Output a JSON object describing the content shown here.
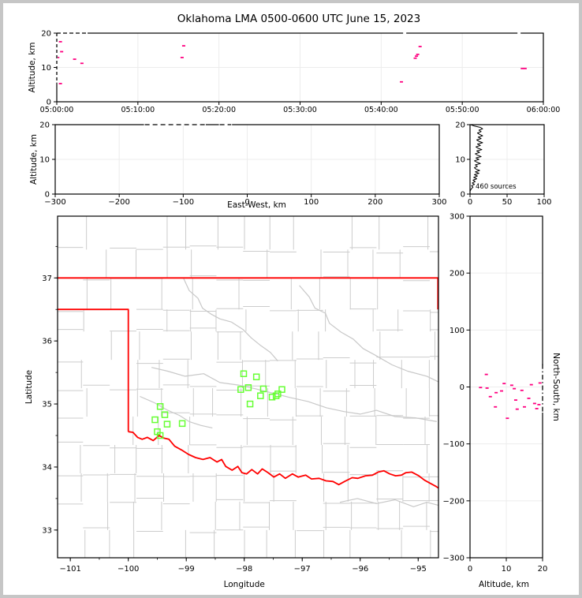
{
  "title": "Oklahoma LMA 0500-0600 UTC June 15, 2023",
  "colors": {
    "source_point": "#ff0080",
    "station": "#66ff33",
    "state_border": "#ff0000",
    "county_line": "#cccccc",
    "gridline": "#ececec",
    "frame": "#000000",
    "clip_dash": "#000000"
  },
  "chart_data": [
    {
      "id": "time_height",
      "type": "scatter",
      "ylabel": "Altitude, km",
      "xlim_minutes": [
        0,
        60
      ],
      "ylim": [
        0,
        20
      ],
      "xtick_values": [
        0,
        10,
        20,
        30,
        40,
        50,
        60
      ],
      "xtick_labels": [
        "05:00:00",
        "05:10:00",
        "05:20:00",
        "05:30:00",
        "05:40:00",
        "05:50:00",
        "06:00:00"
      ],
      "ytick_values": [
        0,
        10,
        20
      ],
      "ytick_labels": [
        "0",
        "10",
        "20"
      ],
      "points_t_alt": [
        [
          0.45,
          17.5
        ],
        [
          0.6,
          14.6
        ],
        [
          0.12,
          12.9
        ],
        [
          2.2,
          12.4
        ],
        [
          3.1,
          11.2
        ],
        [
          0.45,
          5.3
        ],
        [
          15.65,
          16.3
        ],
        [
          15.45,
          12.9
        ],
        [
          44.8,
          16.1
        ],
        [
          44.5,
          13.8
        ],
        [
          44.35,
          13.3
        ],
        [
          44.2,
          12.7
        ],
        [
          42.5,
          5.8
        ],
        [
          57.4,
          9.7
        ],
        [
          57.75,
          9.7
        ]
      ],
      "clipped_top_ranges_t": [
        [
          0,
          3.7
        ]
      ],
      "clipped_left_alt_range": [
        5.6,
        20
      ],
      "frame_gap_t": [
        42.9,
        57.0
      ]
    },
    {
      "id": "ew_height",
      "type": "scatter",
      "xlabel": "East-West, km",
      "ylabel": "Altitude, km",
      "xlim": [
        -300,
        300
      ],
      "ylim": [
        0,
        20
      ],
      "xtick_values": [
        -300,
        -200,
        -100,
        0,
        100,
        200,
        300
      ],
      "xtick_labels": [
        "−300",
        "−200",
        "−100",
        "0",
        "100",
        "200",
        "300"
      ],
      "ytick_values": [
        0,
        10,
        20
      ],
      "ytick_labels": [
        "0",
        "10",
        "20"
      ],
      "points": [],
      "clipped_top_ranges_ew": [
        [
          -160,
          -66
        ],
        [
          -43,
          -25
        ]
      ]
    },
    {
      "id": "alt_histogram",
      "type": "line",
      "annotation": "460 sources",
      "xlim": [
        0,
        100
      ],
      "ylim": [
        0,
        20
      ],
      "xtick_values": [
        0,
        50,
        100
      ],
      "xtick_labels": [
        "0",
        "50",
        "100"
      ],
      "ytick_values": [
        0,
        10,
        20
      ],
      "ytick_labels": [
        "0",
        "10",
        "20"
      ],
      "profile_alt_step": 0.4,
      "profile_counts": [
        0,
        0,
        0,
        1,
        2,
        4,
        2,
        6,
        3,
        7,
        4,
        9,
        5,
        10,
        6,
        12,
        7,
        13,
        8,
        6,
        10,
        7,
        14,
        9,
        6,
        12,
        8,
        15,
        10,
        7,
        13,
        9,
        16,
        11,
        8,
        14,
        10,
        17,
        12,
        9,
        15,
        11,
        17,
        13,
        10,
        15,
        12,
        17,
        14,
        6,
        1
      ]
    },
    {
      "id": "map",
      "type": "scatter",
      "xlabel": "Longitude",
      "ylabel": "Latitude",
      "xlim": [
        -101.22,
        -94.65
      ],
      "ylim": [
        32.56,
        37.98
      ],
      "xtick_values": [
        -101,
        -100,
        -99,
        -98,
        -97,
        -96,
        -95
      ],
      "xtick_labels": [
        "−101",
        "−100",
        "−99",
        "−98",
        "−97",
        "−96",
        "−95"
      ],
      "ytick_values": [
        33,
        34,
        35,
        36,
        37
      ],
      "ytick_labels": [
        "33",
        "34",
        "35",
        "36",
        "37"
      ],
      "minor_tick_step": 0.5,
      "stations_lon_lat": [
        [
          -98.01,
          35.48
        ],
        [
          -97.79,
          35.43
        ],
        [
          -98.06,
          35.23
        ],
        [
          -97.93,
          35.26
        ],
        [
          -97.67,
          35.24
        ],
        [
          -97.72,
          35.13
        ],
        [
          -97.9,
          35.0
        ],
        [
          -97.52,
          35.11
        ],
        [
          -97.45,
          35.13
        ],
        [
          -97.42,
          35.16
        ],
        [
          -97.35,
          35.23
        ],
        [
          -99.45,
          34.96
        ],
        [
          -99.37,
          34.83
        ],
        [
          -99.54,
          34.75
        ],
        [
          -99.33,
          34.68
        ],
        [
          -99.07,
          34.69
        ],
        [
          -99.5,
          34.56
        ],
        [
          -99.45,
          34.5
        ]
      ],
      "state_border_red": [
        [
          [
            -101.22,
            37.0
          ],
          [
            -94.65,
            37.0
          ]
        ],
        [
          [
            -94.66,
            36.5
          ],
          [
            -94.66,
            37.0
          ]
        ],
        [
          [
            -101.22,
            36.5
          ],
          [
            -100.0,
            36.5
          ],
          [
            -100.0,
            34.56
          ]
        ],
        [
          [
            -100.0,
            34.56
          ],
          [
            -99.92,
            34.55
          ],
          [
            -99.84,
            34.47
          ],
          [
            -99.76,
            34.44
          ],
          [
            -99.67,
            34.47
          ],
          [
            -99.57,
            34.42
          ],
          [
            -99.47,
            34.5
          ],
          [
            -99.39,
            34.46
          ],
          [
            -99.3,
            34.44
          ],
          [
            -99.2,
            34.33
          ],
          [
            -99.08,
            34.27
          ],
          [
            -98.96,
            34.2
          ],
          [
            -98.84,
            34.15
          ],
          [
            -98.71,
            34.12
          ],
          [
            -98.59,
            34.15
          ],
          [
            -98.47,
            34.08
          ],
          [
            -98.39,
            34.12
          ],
          [
            -98.32,
            34.01
          ],
          [
            -98.21,
            33.95
          ],
          [
            -98.11,
            34.01
          ],
          [
            -98.04,
            33.91
          ],
          [
            -97.96,
            33.89
          ],
          [
            -97.87,
            33.96
          ],
          [
            -97.77,
            33.89
          ],
          [
            -97.69,
            33.97
          ],
          [
            -97.59,
            33.91
          ],
          [
            -97.49,
            33.84
          ],
          [
            -97.39,
            33.89
          ],
          [
            -97.29,
            33.82
          ],
          [
            -97.17,
            33.89
          ],
          [
            -97.07,
            33.84
          ],
          [
            -96.94,
            33.87
          ],
          [
            -96.84,
            33.81
          ],
          [
            -96.71,
            33.82
          ],
          [
            -96.59,
            33.78
          ],
          [
            -96.47,
            33.77
          ],
          [
            -96.37,
            33.72
          ],
          [
            -96.27,
            33.77
          ],
          [
            -96.14,
            33.83
          ],
          [
            -96.04,
            33.82
          ],
          [
            -95.91,
            33.86
          ],
          [
            -95.79,
            33.87
          ],
          [
            -95.69,
            33.92
          ],
          [
            -95.59,
            33.94
          ],
          [
            -95.49,
            33.89
          ],
          [
            -95.39,
            33.86
          ],
          [
            -95.29,
            33.87
          ],
          [
            -95.21,
            33.91
          ],
          [
            -95.11,
            33.92
          ],
          [
            -94.99,
            33.86
          ],
          [
            -94.89,
            33.79
          ],
          [
            -94.79,
            33.74
          ],
          [
            -94.69,
            33.69
          ],
          [
            -94.62,
            33.65
          ]
        ]
      ],
      "rivers_gray": [
        [
          [
            -99.05,
            37.0
          ],
          [
            -98.95,
            36.8
          ],
          [
            -98.8,
            36.68
          ],
          [
            -98.72,
            36.52
          ],
          [
            -98.58,
            36.43
          ],
          [
            -98.42,
            36.35
          ],
          [
            -98.22,
            36.3
          ],
          [
            -98.02,
            36.18
          ],
          [
            -97.88,
            36.05
          ],
          [
            -97.72,
            35.93
          ],
          [
            -97.55,
            35.82
          ],
          [
            -97.42,
            35.68
          ]
        ],
        [
          [
            -97.05,
            36.88
          ],
          [
            -96.88,
            36.7
          ],
          [
            -96.78,
            36.52
          ],
          [
            -96.6,
            36.44
          ],
          [
            -96.53,
            36.28
          ],
          [
            -96.33,
            36.14
          ],
          [
            -96.12,
            36.03
          ],
          [
            -95.95,
            35.88
          ],
          [
            -95.75,
            35.78
          ],
          [
            -95.45,
            35.62
          ],
          [
            -95.18,
            35.52
          ],
          [
            -94.85,
            35.44
          ],
          [
            -94.65,
            35.35
          ]
        ],
        [
          [
            -99.6,
            35.58
          ],
          [
            -99.32,
            35.52
          ],
          [
            -99.02,
            35.44
          ],
          [
            -98.7,
            35.48
          ],
          [
            -98.42,
            35.34
          ],
          [
            -98.1,
            35.3
          ],
          [
            -97.8,
            35.24
          ],
          [
            -97.5,
            35.17
          ],
          [
            -97.2,
            35.1
          ],
          [
            -96.9,
            35.04
          ],
          [
            -96.58,
            34.94
          ],
          [
            -96.28,
            34.88
          ],
          [
            -96.0,
            34.84
          ],
          [
            -95.72,
            34.9
          ],
          [
            -95.4,
            34.8
          ],
          [
            -95.05,
            34.78
          ],
          [
            -94.68,
            34.72
          ]
        ],
        [
          [
            -96.35,
            33.44
          ],
          [
            -96.05,
            33.5
          ],
          [
            -95.72,
            33.42
          ],
          [
            -95.4,
            33.48
          ],
          [
            -95.08,
            33.37
          ],
          [
            -94.85,
            33.44
          ],
          [
            -94.64,
            33.39
          ]
        ],
        [
          [
            -99.8,
            35.12
          ],
          [
            -99.55,
            35.02
          ],
          [
            -99.32,
            34.9
          ],
          [
            -99.12,
            34.82
          ],
          [
            -98.95,
            34.72
          ],
          [
            -98.75,
            34.66
          ],
          [
            -98.55,
            34.62
          ]
        ]
      ],
      "county_grid": {
        "cols": [
          -101.25,
          -100.78,
          -100.32,
          -99.86,
          -99.4,
          -98.94,
          -98.48,
          -98.02,
          -97.56,
          -97.1,
          -96.64,
          -96.18,
          -95.72,
          -95.26,
          -94.8
        ],
        "rows": [
          32.55,
          33.0,
          33.45,
          33.9,
          34.35,
          34.8,
          35.25,
          35.7,
          36.15,
          36.5,
          37.0,
          37.45,
          37.98
        ],
        "jitter_lon": 0.18,
        "jitter_lat": 0.12,
        "skip_fraction": 0.22,
        "seed": 13
      }
    },
    {
      "id": "ns_height",
      "type": "scatter",
      "xlabel": "Altitude, km",
      "ylabel": "North-South, km",
      "xlim": [
        0,
        20
      ],
      "ylim": [
        -300,
        300
      ],
      "xtick_values": [
        0,
        10,
        20
      ],
      "xtick_labels": [
        "0",
        "10",
        "20"
      ],
      "ytick_values": [
        300,
        200,
        100,
        0,
        -100,
        -200,
        -300
      ],
      "ytick_labels": [
        "300",
        "200",
        "100",
        "0",
        "−100",
        "−200",
        "−300"
      ],
      "points_alt_ns": [
        [
          4.5,
          22
        ],
        [
          4.7,
          -2
        ],
        [
          2.9,
          -1
        ],
        [
          9.4,
          6
        ],
        [
          11.5,
          3
        ],
        [
          16.9,
          4
        ],
        [
          19.3,
          7
        ],
        [
          7.2,
          -10
        ],
        [
          12.2,
          -3
        ],
        [
          14.3,
          -6
        ],
        [
          8.7,
          -7
        ],
        [
          5.6,
          -17
        ],
        [
          12.6,
          -23
        ],
        [
          16.2,
          -20
        ],
        [
          17.8,
          -29
        ],
        [
          19.0,
          -31
        ],
        [
          7.0,
          -35
        ],
        [
          13.0,
          -39
        ],
        [
          15.0,
          -35
        ],
        [
          18.4,
          -38
        ],
        [
          10.3,
          -55
        ]
      ],
      "clipped_right_ns_range": [
        -45,
        40
      ]
    }
  ]
}
